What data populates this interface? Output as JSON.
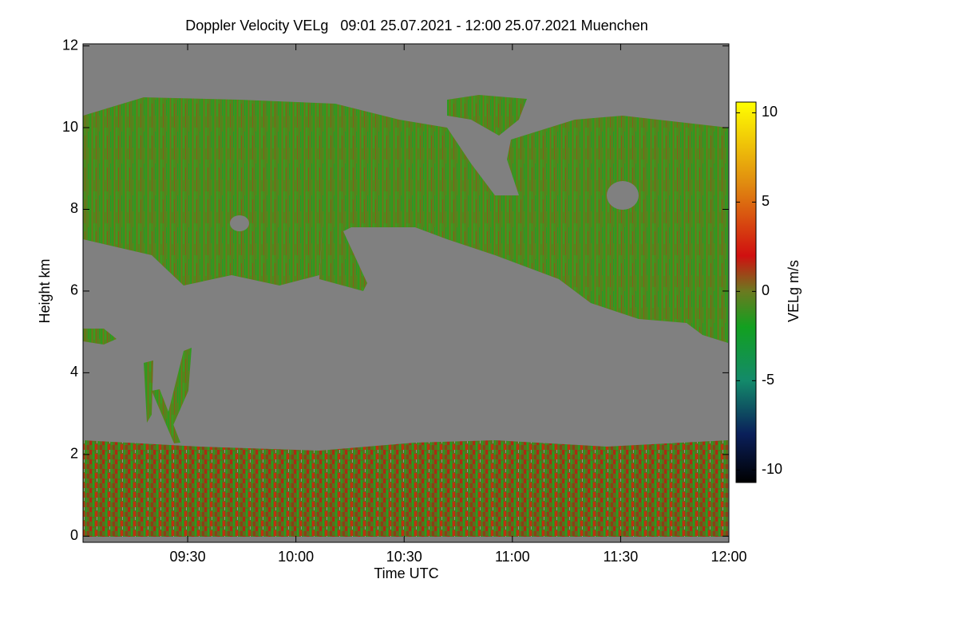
{
  "chart_data": {
    "type": "heatmap",
    "title": "Doppler Velocity VELg   09:01 25.07.2021 - 12:00 25.07.2021 Muenchen",
    "x_label": "Time UTC",
    "y_label": "Height km",
    "colorbar_label": "VELg m/s",
    "xlim": [
      "09:01",
      "12:00"
    ],
    "xticks": [
      "09:30",
      "10:00",
      "10:30",
      "11:00",
      "11:30",
      "12:00"
    ],
    "ylim": [
      -0.15,
      12.05
    ],
    "yticks": [
      0,
      2,
      4,
      6,
      8,
      10,
      12
    ],
    "clim": [
      -10.7,
      10.6
    ],
    "cticks": [
      -10,
      -5,
      0,
      5,
      10
    ],
    "colorscale": [
      {
        "value": -10.7,
        "color": "#000000"
      },
      {
        "value": -8,
        "color": "#0a1f5a"
      },
      {
        "value": -5,
        "color": "#138a6a"
      },
      {
        "value": -2,
        "color": "#12a020"
      },
      {
        "value": 0,
        "color": "#6b7a20"
      },
      {
        "value": 2,
        "color": "#d01010"
      },
      {
        "value": 6,
        "color": "#e08a10"
      },
      {
        "value": 10.6,
        "color": "#ffff00"
      }
    ]
  }
}
